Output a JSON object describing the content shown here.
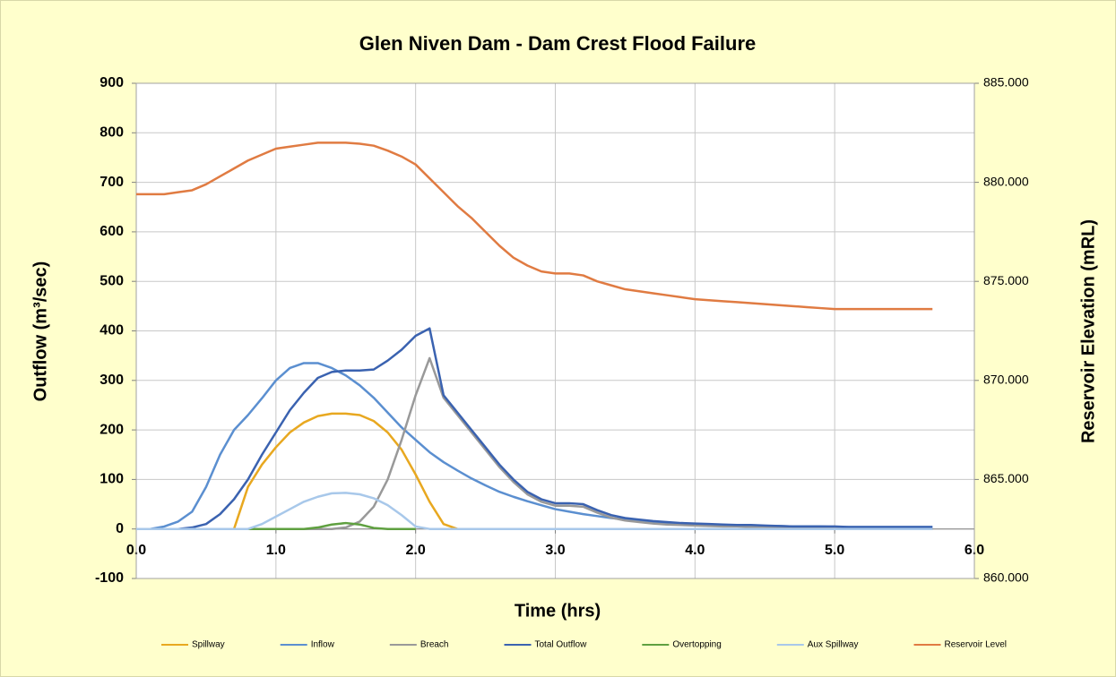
{
  "chart_data": {
    "type": "line",
    "title": "Glen Niven Dam - Dam Crest Flood Failure",
    "x_label": "Time (hrs)",
    "y_label": "Outflow (m³/sec)",
    "y2_label": "Reservoir Elevation (mRL)",
    "x": [
      0,
      0.1,
      0.2,
      0.3,
      0.4,
      0.5,
      0.6,
      0.7,
      0.8,
      0.9,
      1.0,
      1.1,
      1.2,
      1.3,
      1.4,
      1.5,
      1.6,
      1.7,
      1.8,
      1.9,
      2.0,
      2.1,
      2.2,
      2.3,
      2.4,
      2.5,
      2.6,
      2.7,
      2.8,
      2.9,
      3.0,
      3.1,
      3.2,
      3.3,
      3.4,
      3.5,
      3.6,
      3.7,
      3.8,
      3.9,
      4.0,
      4.1,
      4.2,
      4.3,
      4.4,
      4.5,
      4.6,
      4.7,
      4.8,
      4.9,
      5.0,
      5.1,
      5.2,
      5.3,
      5.4,
      5.5,
      5.6,
      5.7
    ],
    "xlim": [
      0,
      6
    ],
    "xticks": [
      {
        "value": 0,
        "label": "0.0"
      },
      {
        "value": 1,
        "label": "1.0"
      },
      {
        "value": 2,
        "label": "2.0"
      },
      {
        "value": 3,
        "label": "3.0"
      },
      {
        "value": 4,
        "label": "4.0"
      },
      {
        "value": 5,
        "label": "5.0"
      },
      {
        "value": 6,
        "label": "6.0"
      }
    ],
    "ylim": [
      -100,
      900
    ],
    "yticks": [
      -100,
      0,
      100,
      200,
      300,
      400,
      500,
      600,
      700,
      800,
      900
    ],
    "y2lim": [
      860,
      885
    ],
    "y2ticks": [
      {
        "value": 860,
        "label": "860.000"
      },
      {
        "value": 865,
        "label": "865.000"
      },
      {
        "value": 870,
        "label": "870.000"
      },
      {
        "value": 875,
        "label": "875.000"
      },
      {
        "value": 880,
        "label": "880.000"
      },
      {
        "value": 885,
        "label": "885.000"
      }
    ],
    "grid": true,
    "legend": "bottom",
    "series": [
      {
        "name": "Spillway",
        "color": "#e8a820",
        "values": [
          0,
          0,
          0,
          0,
          0,
          0,
          0,
          0,
          85,
          130,
          165,
          195,
          215,
          228,
          233,
          233,
          230,
          218,
          195,
          160,
          110,
          55,
          10,
          0,
          null,
          null,
          null,
          null,
          null,
          null,
          null,
          null,
          null,
          null,
          null,
          null,
          null,
          null,
          null,
          null,
          null,
          null,
          null,
          null,
          null,
          null,
          null,
          null,
          null,
          null,
          null,
          null,
          null,
          null,
          null,
          null,
          null,
          null
        ]
      },
      {
        "name": "Inflow",
        "color": "#5b8fd0",
        "values": [
          0,
          0,
          5,
          15,
          35,
          85,
          150,
          200,
          230,
          264,
          300,
          325,
          335,
          335,
          325,
          310,
          290,
          265,
          235,
          205,
          180,
          155,
          135,
          118,
          102,
          88,
          75,
          65,
          56,
          48,
          40,
          35,
          30,
          26,
          22,
          19,
          16,
          14,
          12,
          11,
          10,
          9,
          8,
          7,
          7,
          6,
          6,
          5,
          5,
          5,
          4,
          4,
          4,
          4,
          4,
          4,
          4,
          4
        ]
      },
      {
        "name": "Breach",
        "color": "#999999",
        "values": [
          0,
          0,
          0,
          0,
          0,
          0,
          0,
          0,
          0,
          0,
          0,
          0,
          0,
          0,
          0,
          3,
          15,
          45,
          100,
          180,
          270,
          345,
          265,
          230,
          195,
          160,
          125,
          95,
          70,
          55,
          47,
          47,
          45,
          33,
          23,
          17,
          14,
          11,
          9,
          8,
          7,
          6,
          5,
          5,
          4,
          3,
          2,
          2,
          2,
          1,
          1,
          1,
          1,
          1,
          1,
          1,
          0,
          0
        ]
      },
      {
        "name": "Total Outflow",
        "color": "#3a62b0",
        "values": [
          0,
          0,
          0,
          0,
          3,
          10,
          30,
          60,
          100,
          150,
          195,
          240,
          275,
          305,
          317,
          320,
          320,
          322,
          340,
          362,
          390,
          405,
          270,
          235,
          200,
          165,
          130,
          100,
          75,
          60,
          52,
          52,
          50,
          38,
          28,
          22,
          19,
          16,
          14,
          12,
          11,
          10,
          9,
          8,
          8,
          7,
          6,
          5,
          5,
          5,
          5,
          4,
          4,
          4,
          4,
          4,
          4,
          4
        ]
      },
      {
        "name": "Overtopping",
        "color": "#5fa040",
        "values": [
          0,
          0,
          0,
          0,
          0,
          0,
          0,
          0,
          0,
          0,
          0,
          0,
          0,
          3,
          9,
          12,
          9,
          2,
          0,
          0,
          0,
          null,
          null,
          null,
          null,
          null,
          null,
          null,
          null,
          null,
          null,
          null,
          null,
          null,
          null,
          null,
          null,
          null,
          null,
          null,
          null,
          null,
          null,
          null,
          null,
          null,
          null,
          null,
          null,
          null,
          null,
          null,
          null,
          null,
          null,
          null,
          null,
          null
        ]
      },
      {
        "name": "Aux Spillway",
        "color": "#a8c8ea",
        "values": [
          0,
          0,
          0,
          0,
          0,
          0,
          0,
          0,
          0,
          10,
          25,
          40,
          55,
          65,
          72,
          73,
          70,
          62,
          48,
          28,
          5,
          0,
          0,
          0,
          0,
          0,
          0,
          0,
          0,
          0,
          0,
          0,
          0,
          0,
          0,
          0,
          0,
          0,
          0,
          0,
          0,
          0,
          0,
          0,
          0,
          0,
          0,
          0,
          0,
          0,
          0,
          0,
          0,
          0,
          0,
          0,
          0,
          0
        ]
      },
      {
        "name": "Reservoir Level",
        "color": "#e07b42",
        "axis": "y2",
        "values": [
          879.4,
          879.4,
          879.4,
          879.5,
          879.6,
          879.9,
          880.3,
          880.7,
          881.1,
          881.4,
          881.7,
          881.8,
          881.9,
          882.0,
          882.0,
          882.0,
          881.95,
          881.85,
          881.6,
          881.3,
          880.9,
          880.2,
          879.5,
          878.8,
          878.2,
          877.5,
          876.8,
          876.2,
          875.8,
          875.5,
          875.4,
          875.4,
          875.3,
          875.0,
          874.8,
          874.6,
          874.5,
          874.4,
          874.3,
          874.2,
          874.1,
          874.05,
          874.0,
          873.95,
          873.9,
          873.85,
          873.8,
          873.75,
          873.7,
          873.65,
          873.6,
          873.6,
          873.6,
          873.6,
          873.6,
          873.6,
          873.6,
          873.6
        ]
      }
    ]
  }
}
